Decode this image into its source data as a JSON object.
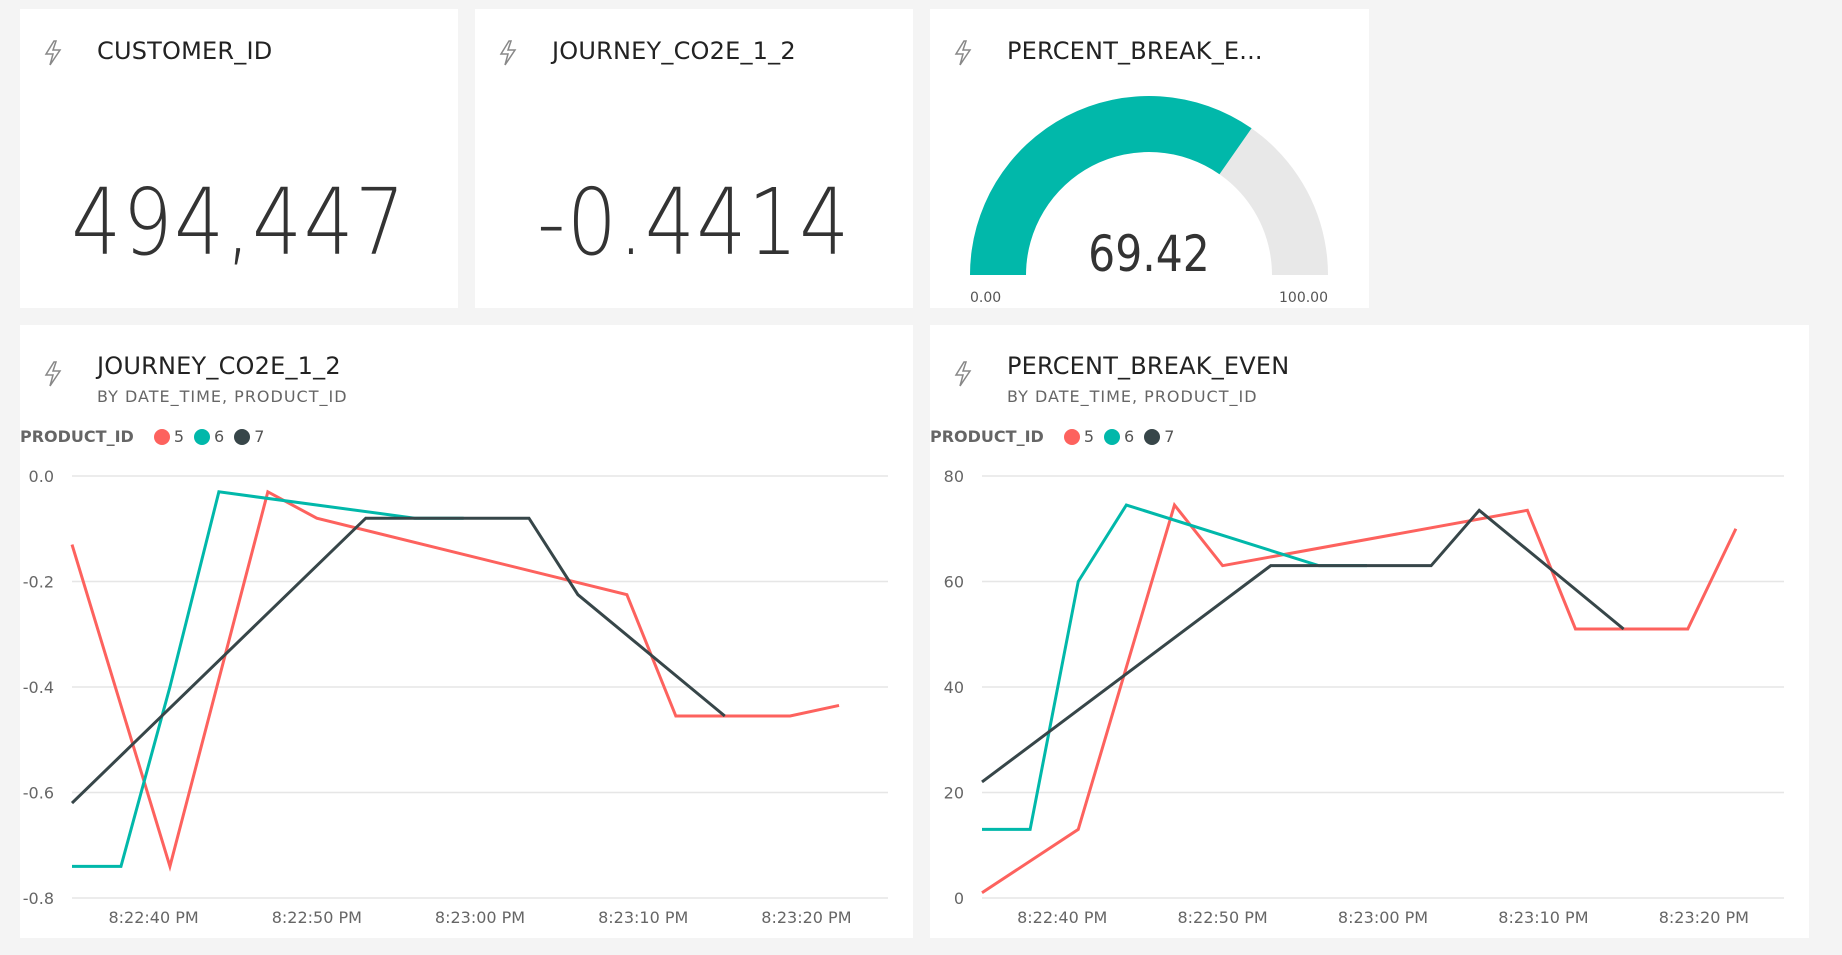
{
  "tiles": {
    "customer_id": {
      "title": "CUSTOMER_ID",
      "value": "494,447"
    },
    "journey": {
      "title": "JOURNEY_CO2E_1_2",
      "value": "-0.4414"
    },
    "gauge": {
      "title": "PERCENT_BREAK_E...",
      "value": "69.42",
      "value_num": 69.42,
      "min": "0.00",
      "max": "100.00",
      "min_num": 0,
      "max_num": 100
    }
  },
  "colors": {
    "accent": "#01b8aa",
    "red": "#fd625e",
    "dark": "#374649",
    "track": "#e8e8e8"
  },
  "chart_data": [
    {
      "type": "line",
      "title": "JOURNEY_CO2E_1_2",
      "subtitle": "BY DATE_TIME, PRODUCT_ID",
      "legend_title": "PRODUCT_ID",
      "legend_placement": "top-left",
      "x_unit": "seconds after 8:22:00 PM",
      "xlim": [
        35,
        85
      ],
      "ylim": [
        -0.8,
        0.0
      ],
      "yticks": [
        "0.0",
        "-0.2",
        "-0.4",
        "-0.6",
        "-0.8"
      ],
      "ytick_values": [
        0,
        -0.2,
        -0.4,
        -0.6,
        -0.8
      ],
      "xticks": [
        "8:22:40 PM",
        "8:22:50 PM",
        "8:23:00 PM",
        "8:23:10 PM",
        "8:23:20 PM"
      ],
      "xtick_values": [
        40,
        50,
        60,
        70,
        80
      ],
      "grid": true,
      "series": [
        {
          "name": "5",
          "color": "#fd625e",
          "x": [
            35,
            41,
            47,
            50,
            69,
            72,
            79,
            82
          ],
          "y": [
            -0.13,
            -0.74,
            -0.03,
            -0.08,
            -0.225,
            -0.455,
            -0.455,
            -0.435
          ]
        },
        {
          "name": "6",
          "color": "#01b8aa",
          "x": [
            35,
            38,
            41,
            44,
            56,
            59
          ],
          "y": [
            -0.74,
            -0.74,
            -0.4,
            -0.03,
            -0.08,
            -0.08
          ]
        },
        {
          "name": "7",
          "color": "#374649",
          "x": [
            35,
            53,
            63,
            66,
            75
          ],
          "y": [
            -0.62,
            -0.08,
            -0.08,
            -0.225,
            -0.455
          ]
        }
      ]
    },
    {
      "type": "line",
      "title": "PERCENT_BREAK_EVEN",
      "subtitle": "BY DATE_TIME, PRODUCT_ID",
      "legend_title": "PRODUCT_ID",
      "legend_placement": "top-left",
      "x_unit": "seconds after 8:22:00 PM",
      "xlim": [
        35,
        85
      ],
      "ylim": [
        0,
        80
      ],
      "yticks": [
        "80",
        "60",
        "40",
        "20",
        "0"
      ],
      "ytick_values": [
        80,
        60,
        40,
        20,
        0
      ],
      "xticks": [
        "8:22:40 PM",
        "8:22:50 PM",
        "8:23:00 PM",
        "8:23:10 PM",
        "8:23:20 PM"
      ],
      "xtick_values": [
        40,
        50,
        60,
        70,
        80
      ],
      "grid": true,
      "series": [
        {
          "name": "5",
          "color": "#fd625e",
          "x": [
            35,
            41,
            47,
            50,
            69,
            72,
            79,
            82
          ],
          "y": [
            1,
            13,
            74.5,
            63,
            73.5,
            51,
            51,
            70
          ]
        },
        {
          "name": "6",
          "color": "#01b8aa",
          "x": [
            35,
            38,
            41,
            44,
            56,
            59
          ],
          "y": [
            13,
            13,
            60,
            74.5,
            63,
            63
          ]
        },
        {
          "name": "7",
          "color": "#374649",
          "x": [
            35,
            53,
            63,
            66,
            75
          ],
          "y": [
            22,
            63,
            63,
            73.5,
            51
          ]
        }
      ]
    }
  ]
}
